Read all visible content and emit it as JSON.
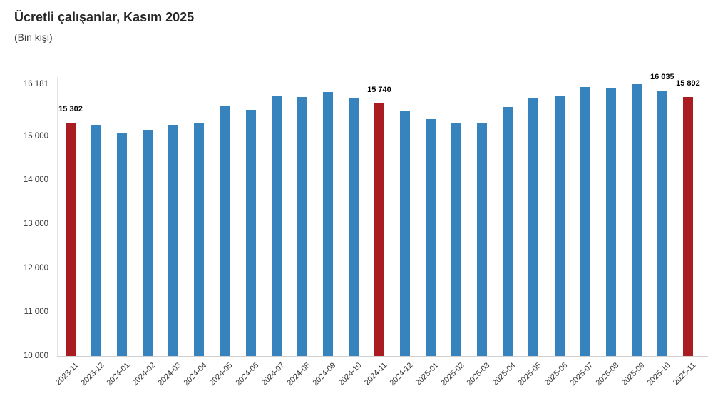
{
  "header": {
    "title": "Ücretli çalışanlar, Kasım 2025",
    "subtitle": "(Bin kişi)"
  },
  "colors": {
    "bar_blue": "#3783bd",
    "bar_red": "#a81c22",
    "axis_line": "#cfcfcf",
    "axis_text": "#333333",
    "title_text": "#262626",
    "data_label_text": "#000000"
  },
  "chart_data": {
    "type": "bar",
    "title": "Ücretli çalışanlar, Kasım 2025",
    "subtitle": "(Bin kişi)",
    "xlabel": "",
    "ylabel": "Bin kişi",
    "ylim": [
      10000,
      16181
    ],
    "grid": false,
    "legend": false,
    "categories": [
      "2023-11",
      "2023-12",
      "2024-01",
      "2024-02",
      "2024-03",
      "2024-04",
      "2024-05",
      "2024-06",
      "2024-07",
      "2024-08",
      "2024-09",
      "2024-10",
      "2024-11",
      "2024-12",
      "2025-01",
      "2025-02",
      "2025-03",
      "2025-04",
      "2025-05",
      "2025-06",
      "2025-07",
      "2025-08",
      "2025-09",
      "2025-10",
      "2025-11"
    ],
    "values": [
      15302,
      15250,
      15080,
      15150,
      15250,
      15300,
      15700,
      15595,
      15905,
      15890,
      15995,
      15860,
      15740,
      15570,
      15390,
      15285,
      15310,
      15655,
      15880,
      15925,
      16110,
      16095,
      16181,
      16035,
      15892
    ],
    "highlighted_categories": [
      "2023-11",
      "2024-11",
      "2025-11"
    ],
    "data_labels": [
      {
        "category": "2023-11",
        "text": "15 302"
      },
      {
        "category": "2024-11",
        "text": "15 740"
      },
      {
        "category": "2025-10",
        "text": "16 035"
      },
      {
        "category": "2025-11",
        "text": "15 892"
      }
    ],
    "y_ticks": [
      {
        "value": 16181,
        "label": "16 181"
      },
      {
        "value": 15000,
        "label": "15 000"
      },
      {
        "value": 14000,
        "label": "14 000"
      },
      {
        "value": 13000,
        "label": "13 000"
      },
      {
        "value": 12000,
        "label": "12 000"
      },
      {
        "value": 11000,
        "label": "11 000"
      },
      {
        "value": 10000,
        "label": "10 000"
      }
    ]
  }
}
